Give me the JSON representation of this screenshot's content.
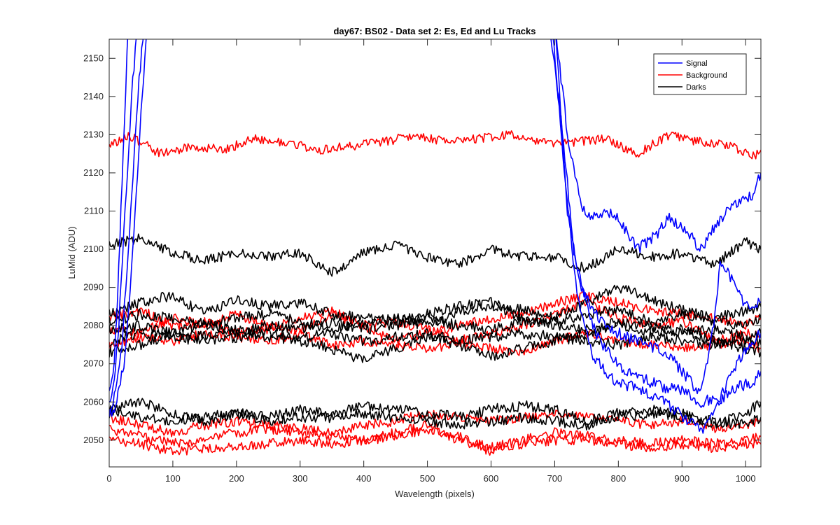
{
  "chart_data": {
    "type": "line",
    "title": "day67: BS02 - Data set 2: Es, Ed and Lu Tracks",
    "xlabel": "Wavelength (pixels)",
    "ylabel": "LuMid (ADU)",
    "xlim": [
      0,
      1024
    ],
    "ylim": [
      2043,
      2155
    ],
    "xticks": [
      0,
      100,
      200,
      300,
      400,
      500,
      600,
      700,
      800,
      900,
      1000
    ],
    "yticks": [
      2050,
      2060,
      2070,
      2080,
      2090,
      2100,
      2110,
      2120,
      2130,
      2140,
      2150
    ],
    "grid": false,
    "legend_position": "top-right",
    "legend": [
      {
        "label": "Signal",
        "color": "#0000ff"
      },
      {
        "label": "Background",
        "color": "#ff0000"
      },
      {
        "label": "Darks",
        "color": "#000000"
      }
    ],
    "series": [
      {
        "group": "Signal",
        "color": "#0000ff",
        "noise": 1.5,
        "seed": 11,
        "x": [
          0,
          8,
          15,
          22,
          30,
          40,
          50,
          60,
          680,
          700,
          720,
          740,
          760,
          780,
          800,
          830,
          860,
          880,
          900,
          930,
          960,
          990,
          1010,
          1024
        ],
        "y": [
          2063,
          2070,
          2095,
          2125,
          2160,
          2160,
          2160,
          2160,
          2160,
          2160,
          2130,
          2112,
          2108,
          2110,
          2108,
          2100,
          2104,
          2108,
          2106,
          2100,
          2108,
          2113,
          2114,
          2120
        ]
      },
      {
        "group": "Signal",
        "color": "#0000ff",
        "noise": 1.5,
        "seed": 12,
        "x": [
          0,
          8,
          15,
          25,
          35,
          45,
          55,
          680,
          700,
          720,
          740,
          760,
          780,
          800,
          830,
          860,
          880,
          900,
          930,
          950,
          960,
          980,
          1000,
          1024
        ],
        "y": [
          2060,
          2065,
          2080,
          2110,
          2140,
          2160,
          2160,
          2160,
          2160,
          2110,
          2090,
          2084,
          2080,
          2078,
          2076,
          2074,
          2072,
          2068,
          2062,
          2080,
          2097,
          2092,
          2085,
          2086
        ]
      },
      {
        "group": "Signal",
        "color": "#0000ff",
        "noise": 1.5,
        "seed": 13,
        "x": [
          0,
          10,
          20,
          30,
          45,
          55,
          690,
          710,
          730,
          750,
          770,
          790,
          810,
          840,
          870,
          900,
          930,
          960,
          980,
          1000,
          1024
        ],
        "y": [
          2058,
          2062,
          2075,
          2100,
          2140,
          2160,
          2160,
          2135,
          2100,
          2085,
          2076,
          2072,
          2068,
          2066,
          2064,
          2063,
          2060,
          2061,
          2068,
          2074,
          2078
        ]
      },
      {
        "group": "Signal",
        "color": "#0000ff",
        "noise": 1.5,
        "seed": 14,
        "x": [
          0,
          12,
          25,
          35,
          50,
          60,
          695,
          715,
          735,
          760,
          790,
          820,
          850,
          880,
          910,
          935,
          960,
          985,
          1010,
          1024
        ],
        "y": [
          2056,
          2060,
          2072,
          2095,
          2135,
          2160,
          2160,
          2120,
          2088,
          2072,
          2066,
          2064,
          2062,
          2059,
          2055,
          2053,
          2060,
          2064,
          2065,
          2068
        ]
      },
      {
        "group": "Background",
        "color": "#ff0000",
        "noise": 1.2,
        "seed": 21,
        "x": [
          0,
          30,
          80,
          130,
          180,
          230,
          280,
          330,
          380,
          430,
          480,
          530,
          580,
          630,
          680,
          730,
          780,
          830,
          880,
          930,
          980,
          1010,
          1024
        ],
        "y": [
          2127,
          2130,
          2125,
          2127,
          2126,
          2129,
          2128,
          2126,
          2127,
          2128,
          2130,
          2128,
          2129,
          2130,
          2128,
          2128,
          2129,
          2125,
          2130,
          2128,
          2127,
          2124,
          2126
        ]
      },
      {
        "group": "Background",
        "color": "#ff0000",
        "noise": 1.3,
        "seed": 22,
        "x": [
          0,
          50,
          100,
          150,
          200,
          250,
          300,
          350,
          400,
          450,
          500,
          550,
          600,
          650,
          700,
          750,
          800,
          850,
          900,
          950,
          1000,
          1024
        ],
        "y": [
          2082,
          2084,
          2080,
          2081,
          2078,
          2079,
          2082,
          2084,
          2080,
          2076,
          2078,
          2080,
          2082,
          2083,
          2086,
          2088,
          2086,
          2084,
          2083,
          2082,
          2080,
          2082
        ]
      },
      {
        "group": "Background",
        "color": "#ff0000",
        "noise": 1.3,
        "seed": 23,
        "x": [
          0,
          50,
          100,
          150,
          200,
          250,
          300,
          350,
          400,
          450,
          500,
          550,
          600,
          650,
          700,
          750,
          800,
          850,
          900,
          950,
          1000,
          1024
        ],
        "y": [
          2079,
          2078,
          2082,
          2080,
          2083,
          2080,
          2079,
          2083,
          2080,
          2081,
          2079,
          2076,
          2078,
          2080,
          2083,
          2086,
          2082,
          2080,
          2081,
          2076,
          2078,
          2077
        ]
      },
      {
        "group": "Background",
        "color": "#ff0000",
        "noise": 1.3,
        "seed": 24,
        "x": [
          0,
          50,
          100,
          150,
          200,
          250,
          300,
          350,
          400,
          450,
          500,
          550,
          600,
          650,
          700,
          750,
          800,
          850,
          900,
          950,
          1000,
          1024
        ],
        "y": [
          2075,
          2077,
          2076,
          2078,
          2077,
          2076,
          2078,
          2075,
          2076,
          2075,
          2074,
          2075,
          2074,
          2073,
          2076,
          2078,
          2076,
          2075,
          2074,
          2075,
          2076,
          2074
        ]
      },
      {
        "group": "Background",
        "color": "#ff0000",
        "noise": 1.3,
        "seed": 25,
        "x": [
          0,
          50,
          100,
          150,
          200,
          250,
          300,
          350,
          400,
          450,
          500,
          550,
          600,
          650,
          700,
          750,
          800,
          850,
          900,
          950,
          1000,
          1024
        ],
        "y": [
          2056,
          2054,
          2052,
          2054,
          2055,
          2054,
          2053,
          2052,
          2054,
          2055,
          2057,
          2056,
          2055,
          2056,
          2057,
          2056,
          2055,
          2054,
          2055,
          2053,
          2054,
          2055
        ]
      },
      {
        "group": "Background",
        "color": "#ff0000",
        "noise": 1.3,
        "seed": 26,
        "x": [
          0,
          50,
          100,
          150,
          200,
          250,
          300,
          350,
          400,
          450,
          500,
          550,
          600,
          650,
          700,
          750,
          800,
          850,
          900,
          950,
          1000,
          1024
        ],
        "y": [
          2053,
          2051,
          2049,
          2050,
          2052,
          2053,
          2052,
          2051,
          2050,
          2051,
          2053,
          2050,
          2048,
          2050,
          2052,
          2051,
          2050,
          2049,
          2050,
          2049,
          2050,
          2051
        ]
      },
      {
        "group": "Background",
        "color": "#ff0000",
        "noise": 1.3,
        "seed": 27,
        "x": [
          0,
          50,
          100,
          150,
          200,
          250,
          300,
          350,
          400,
          450,
          500,
          550,
          600,
          650,
          700,
          750,
          800,
          850,
          900,
          950,
          1000,
          1024
        ],
        "y": [
          2050,
          2049,
          2047,
          2048,
          2048,
          2049,
          2050,
          2049,
          2050,
          2052,
          2054,
          2051,
          2047,
          2049,
          2050,
          2050,
          2049,
          2048,
          2049,
          2048,
          2049,
          2049
        ]
      },
      {
        "group": "Darks",
        "color": "#000000",
        "noise": 1.3,
        "seed": 31,
        "x": [
          0,
          50,
          100,
          150,
          200,
          250,
          300,
          350,
          400,
          450,
          500,
          550,
          600,
          650,
          700,
          750,
          800,
          850,
          900,
          950,
          1000,
          1024
        ],
        "y": [
          2101,
          2103,
          2099,
          2097,
          2099,
          2098,
          2099,
          2094,
          2099,
          2101,
          2098,
          2096,
          2100,
          2098,
          2098,
          2095,
          2100,
          2098,
          2099,
          2096,
          2102,
          2100
        ]
      },
      {
        "group": "Darks",
        "color": "#000000",
        "noise": 1.4,
        "seed": 32,
        "x": [
          0,
          50,
          100,
          150,
          200,
          250,
          300,
          350,
          400,
          450,
          500,
          550,
          600,
          650,
          700,
          750,
          800,
          850,
          900,
          950,
          1000,
          1024
        ],
        "y": [
          2083,
          2086,
          2088,
          2083,
          2087,
          2085,
          2086,
          2083,
          2082,
          2081,
          2083,
          2085,
          2086,
          2084,
          2082,
          2086,
          2090,
          2087,
          2084,
          2082,
          2084,
          2085
        ]
      },
      {
        "group": "Darks",
        "color": "#000000",
        "noise": 1.4,
        "seed": 33,
        "x": [
          0,
          50,
          100,
          150,
          200,
          250,
          300,
          350,
          400,
          450,
          500,
          550,
          600,
          650,
          700,
          750,
          800,
          850,
          900,
          950,
          1000,
          1024
        ],
        "y": [
          2081,
          2083,
          2082,
          2080,
          2082,
          2083,
          2081,
          2079,
          2081,
          2082,
          2080,
          2084,
          2085,
          2082,
          2081,
          2083,
          2084,
          2081,
          2083,
          2081,
          2080,
          2082
        ]
      },
      {
        "group": "Darks",
        "color": "#000000",
        "noise": 1.4,
        "seed": 34,
        "x": [
          0,
          50,
          100,
          150,
          200,
          250,
          300,
          350,
          400,
          450,
          500,
          550,
          600,
          650,
          700,
          750,
          800,
          850,
          900,
          950,
          1000,
          1024
        ],
        "y": [
          2079,
          2080,
          2078,
          2081,
          2078,
          2080,
          2079,
          2081,
          2079,
          2080,
          2082,
          2080,
          2079,
          2081,
          2080,
          2079,
          2081,
          2080,
          2078,
          2079,
          2077,
          2078
        ]
      },
      {
        "group": "Darks",
        "color": "#000000",
        "noise": 1.4,
        "seed": 35,
        "x": [
          0,
          50,
          100,
          150,
          200,
          250,
          300,
          350,
          400,
          450,
          500,
          550,
          600,
          650,
          700,
          750,
          800,
          850,
          900,
          950,
          1000,
          1024
        ],
        "y": [
          2076,
          2078,
          2077,
          2076,
          2077,
          2078,
          2077,
          2078,
          2076,
          2077,
          2078,
          2076,
          2077,
          2078,
          2077,
          2076,
          2075,
          2077,
          2076,
          2075,
          2076,
          2075
        ]
      },
      {
        "group": "Darks",
        "color": "#000000",
        "noise": 1.4,
        "seed": 36,
        "x": [
          0,
          50,
          100,
          150,
          200,
          250,
          300,
          350,
          400,
          450,
          500,
          550,
          600,
          650,
          700,
          750,
          800,
          850,
          900,
          950,
          1000,
          1024
        ],
        "y": [
          2073,
          2075,
          2078,
          2077,
          2079,
          2077,
          2076,
          2074,
          2071,
          2074,
          2077,
          2075,
          2072,
          2074,
          2076,
          2078,
          2080,
          2078,
          2079,
          2076,
          2074,
          2073
        ]
      },
      {
        "group": "Darks",
        "color": "#000000",
        "noise": 1.4,
        "seed": 37,
        "x": [
          0,
          50,
          100,
          150,
          200,
          250,
          300,
          350,
          400,
          450,
          500,
          550,
          600,
          650,
          700,
          750,
          800,
          850,
          900,
          950,
          1000,
          1024
        ],
        "y": [
          2058,
          2060,
          2057,
          2055,
          2057,
          2056,
          2058,
          2057,
          2059,
          2058,
          2057,
          2056,
          2058,
          2059,
          2058,
          2055,
          2057,
          2058,
          2057,
          2054,
          2057,
          2060
        ]
      },
      {
        "group": "Darks",
        "color": "#000000",
        "noise": 1.4,
        "seed": 38,
        "x": [
          0,
          50,
          100,
          150,
          200,
          250,
          300,
          350,
          400,
          450,
          500,
          550,
          600,
          650,
          700,
          750,
          800,
          850,
          900,
          950,
          1000,
          1024
        ],
        "y": [
          2057,
          2056,
          2055,
          2056,
          2057,
          2055,
          2056,
          2056,
          2057,
          2056,
          2055,
          2054,
          2055,
          2056,
          2055,
          2054,
          2056,
          2057,
          2056,
          2055,
          2054,
          2056
        ]
      }
    ]
  }
}
